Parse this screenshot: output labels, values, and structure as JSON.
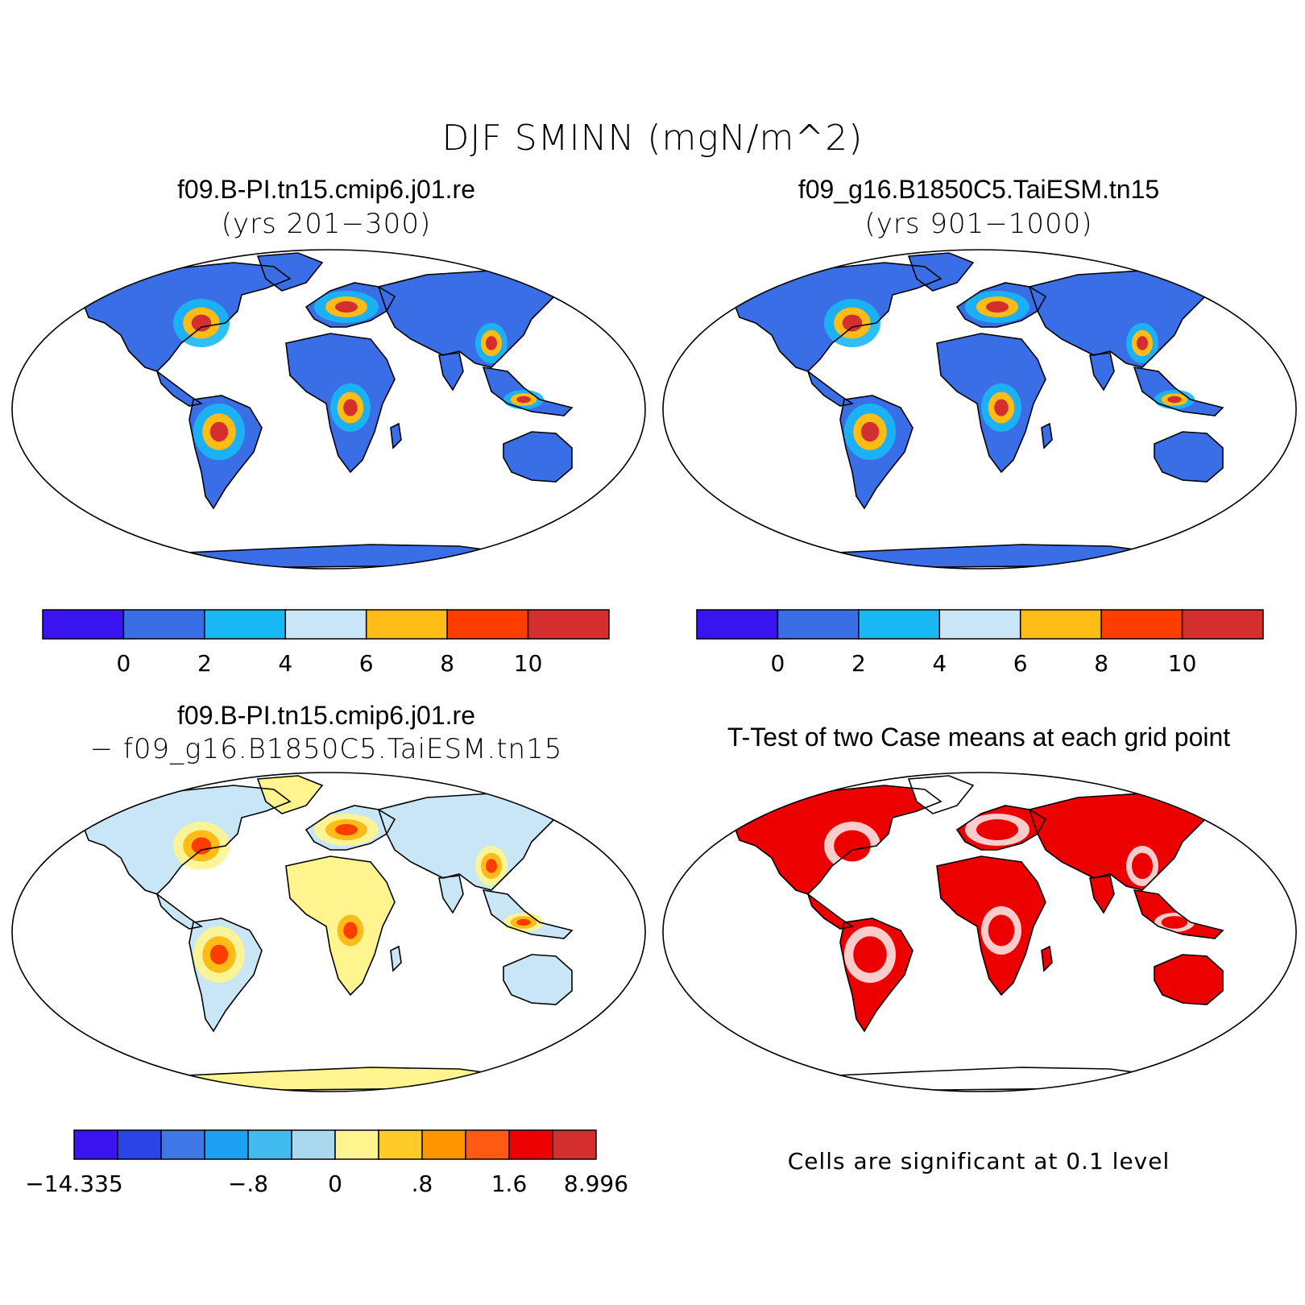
{
  "title": "DJF SMINN (mgN/m^2)",
  "panels": [
    {
      "id": "top-left",
      "case_title": "f09.B-PI.tn15.cmip6.j01.re",
      "subtitle": "(yrs 201−300)"
    },
    {
      "id": "top-right",
      "case_title": "f09_g16.B1850C5.TaiESM.tn15",
      "subtitle": "(yrs 901−1000)"
    },
    {
      "id": "bottom-left",
      "case_title": "f09.B-PI.tn15.cmip6.j01.re",
      "subtitle": "− f09_g16.B1850C5.TaiESM.tn15"
    },
    {
      "id": "bottom-right",
      "case_title": "T-Test of two Case means at each grid point",
      "subtitle": ""
    }
  ],
  "colorbar_top": {
    "colors": [
      "#3a14f0",
      "#3a6ee6",
      "#18b8f5",
      "#c8e6f5",
      "#ffbb16",
      "#ff3d00",
      "#d42e2e"
    ],
    "labels": [
      "0",
      "2",
      "4",
      "6",
      "8",
      "10"
    ]
  },
  "colorbar_diff": {
    "colors": [
      "#3a14f0",
      "#2a44e6",
      "#3f78e6",
      "#1ea0f2",
      "#42bcf0",
      "#aad8ee",
      "#fef58e",
      "#ffcb28",
      "#ff9600",
      "#ff5a14",
      "#ec0000",
      "#d42e2e"
    ],
    "labels": [
      "−14.335",
      "−.8",
      "0",
      ".8",
      "1.6",
      "8.996"
    ]
  },
  "significance_note": "Cells are significant at 0.1 level",
  "map_colors": {
    "low": "#3a6ee6",
    "mid": "#18b8f5",
    "light": "#c8e6f5",
    "warm": "#ffbb16",
    "hot": "#ff3d00",
    "max": "#d42e2e",
    "diff_neutral": "#fef58e",
    "significant": "#ec0000"
  }
}
